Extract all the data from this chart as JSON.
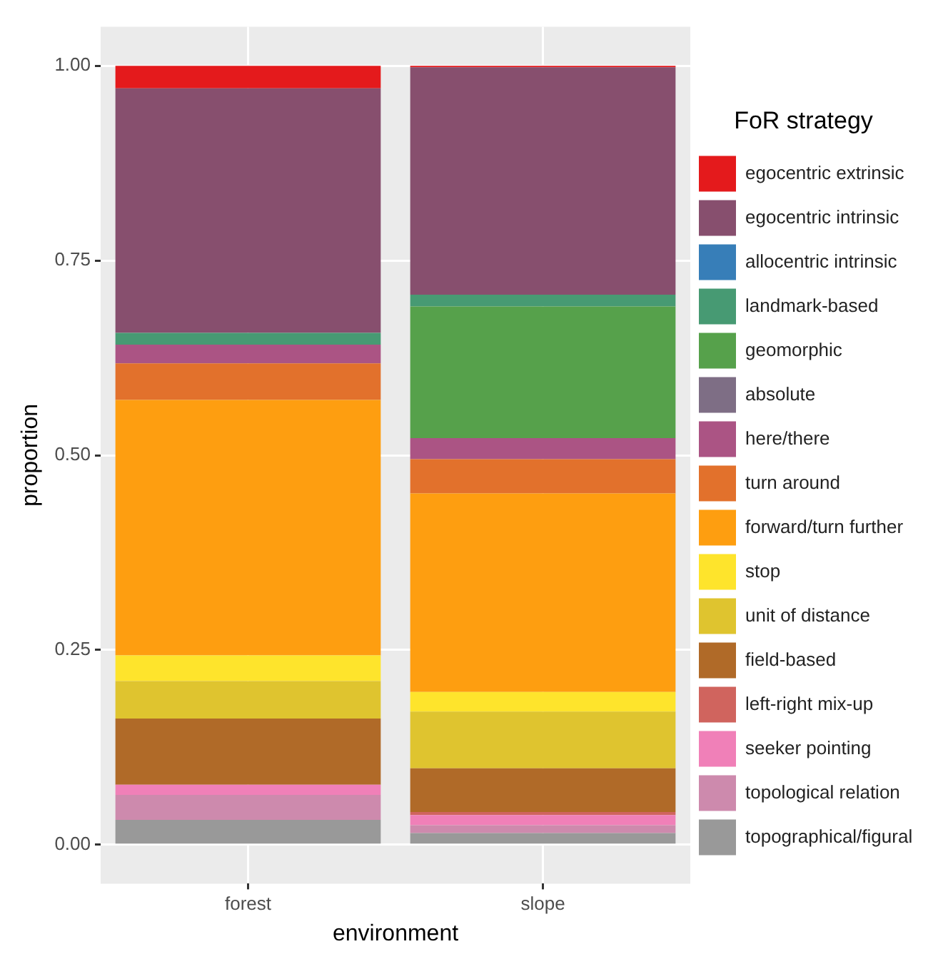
{
  "chart_data": {
    "type": "bar",
    "stacked": true,
    "xlabel": "environment",
    "ylabel": "proportion",
    "legend_title": "FoR strategy",
    "legend": "right",
    "grid": true,
    "categories": [
      "forest",
      "slope"
    ],
    "ylim": [
      -0.05,
      1.05
    ],
    "yticks": [
      {
        "value": 0,
        "label": "0.00"
      },
      {
        "value": 0.25,
        "label": "0.25"
      },
      {
        "value": 0.5,
        "label": "0.50"
      },
      {
        "value": 0.75,
        "label": "0.75"
      },
      {
        "value": 1,
        "label": "1.00"
      }
    ],
    "series": [
      {
        "name": "topographical/figural",
        "color": "#999999",
        "values": [
          0.032,
          0.015
        ]
      },
      {
        "name": "topological relation",
        "color": "#cd8aad",
        "values": [
          0.032,
          0.01
        ]
      },
      {
        "name": "seeker pointing",
        "color": "#f080b8",
        "values": [
          0.013,
          0.013
        ]
      },
      {
        "name": "left-right mix-up",
        "color": "#d0645e",
        "values": [
          0,
          0.004
        ]
      },
      {
        "name": "field-based",
        "color": "#b06a28",
        "values": [
          0.085,
          0.056
        ]
      },
      {
        "name": "unit of distance",
        "color": "#dfc42f",
        "values": [
          0.048,
          0.073
        ]
      },
      {
        "name": "stop",
        "color": "#fee42c",
        "values": [
          0.033,
          0.025
        ]
      },
      {
        "name": "forward/turn further",
        "color": "#fe9e10",
        "values": [
          0.328,
          0.255
        ]
      },
      {
        "name": "turn around",
        "color": "#e2712c",
        "values": [
          0.047,
          0.044
        ]
      },
      {
        "name": "here/there",
        "color": "#ab5484",
        "values": [
          0.024,
          0.027
        ]
      },
      {
        "name": "absolute",
        "color": "#7e6e85",
        "values": [
          0,
          0
        ]
      },
      {
        "name": "geomorphic",
        "color": "#56a14b",
        "values": [
          0,
          0.169
        ]
      },
      {
        "name": "landmark-based",
        "color": "#479a73",
        "values": [
          0.015,
          0.015
        ]
      },
      {
        "name": "allocentric intrinsic",
        "color": "#377eb8",
        "values": [
          0,
          0
        ]
      },
      {
        "name": "egocentric intrinsic",
        "color": "#874f6e",
        "values": [
          0.314,
          0.292
        ]
      },
      {
        "name": "egocentric extrinsic",
        "color": "#e41a1c",
        "values": [
          0.029,
          0.002
        ]
      }
    ]
  }
}
